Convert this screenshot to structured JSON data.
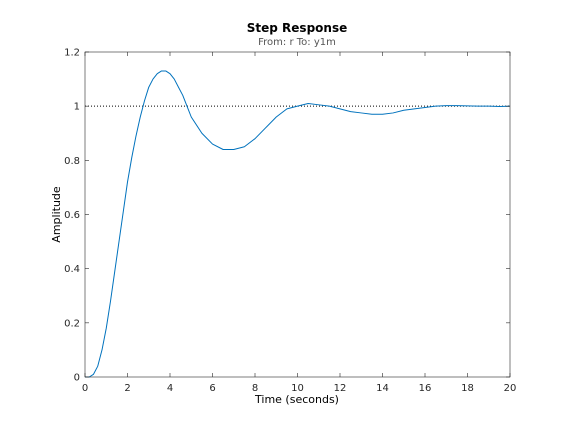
{
  "chart_data": {
    "type": "line",
    "title": "Step Response",
    "subtitle": "From: r  To: y1m",
    "xlabel": "Time (seconds)",
    "ylabel": "Amplitude",
    "xlim": [
      0,
      20
    ],
    "ylim": [
      0,
      1.2
    ],
    "xticks": [
      0,
      2,
      4,
      6,
      8,
      10,
      12,
      14,
      16,
      18,
      20
    ],
    "xtick_labels": [
      "0",
      "2",
      "4",
      "6",
      "8",
      "10",
      "12",
      "14",
      "16",
      "18",
      "20"
    ],
    "yticks": [
      0,
      0.2,
      0.4,
      0.6,
      0.8,
      1,
      1.2
    ],
    "ytick_labels": [
      "0",
      "0.2",
      "0.4",
      "0.6",
      "0.8",
      "1",
      "1.2"
    ],
    "grid": false,
    "reference_line": {
      "y": 1,
      "style": "dotted",
      "color": "#000000"
    },
    "series": [
      {
        "color": "#0072bd",
        "x": [
          0,
          0.2,
          0.4,
          0.6,
          0.8,
          1.0,
          1.2,
          1.4,
          1.6,
          1.8,
          2.0,
          2.2,
          2.4,
          2.6,
          2.8,
          3.0,
          3.2,
          3.4,
          3.6,
          3.8,
          4.0,
          4.2,
          4.4,
          4.6,
          4.8,
          5.0,
          5.5,
          6.0,
          6.5,
          7.0,
          7.5,
          8.0,
          8.5,
          9.0,
          9.5,
          10.0,
          10.5,
          11.0,
          11.5,
          12.0,
          12.5,
          13.0,
          13.5,
          14.0,
          14.5,
          15.0,
          15.5,
          16.0,
          16.5,
          17.0,
          17.5,
          18.0,
          18.5,
          19.0,
          19.5,
          20.0
        ],
        "y": [
          0.0,
          0.0,
          0.01,
          0.04,
          0.1,
          0.18,
          0.28,
          0.39,
          0.5,
          0.61,
          0.72,
          0.81,
          0.89,
          0.96,
          1.02,
          1.07,
          1.1,
          1.12,
          1.13,
          1.13,
          1.12,
          1.1,
          1.07,
          1.04,
          1.0,
          0.96,
          0.9,
          0.86,
          0.84,
          0.84,
          0.85,
          0.88,
          0.92,
          0.96,
          0.99,
          1.0,
          1.01,
          1.005,
          1.0,
          0.99,
          0.98,
          0.975,
          0.97,
          0.97,
          0.975,
          0.985,
          0.99,
          0.995,
          1.0,
          1.002,
          1.002,
          1.001,
          1.0,
          1.0,
          0.999,
          1.0
        ]
      }
    ]
  }
}
